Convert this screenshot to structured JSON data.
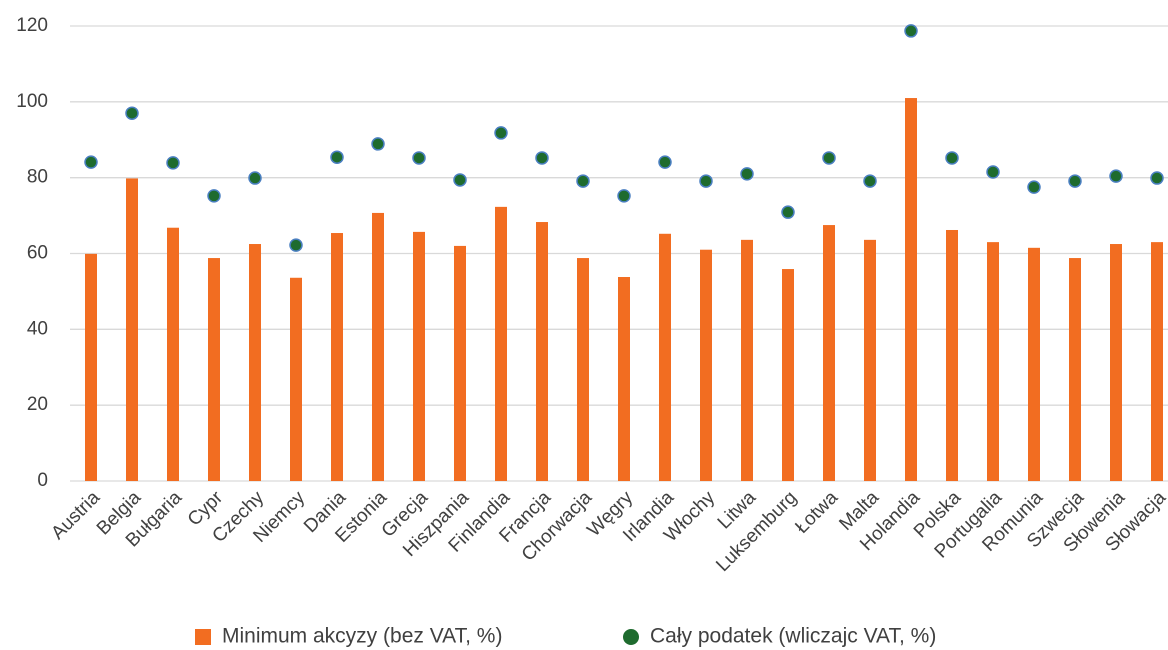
{
  "chart_data": {
    "type": "bar",
    "categories": [
      "Austria",
      "Belgia",
      "Bułgaria",
      "Cypr",
      "Czechy",
      "Niemcy",
      "Dania",
      "Estonia",
      "Grecja",
      "Hiszpania",
      "Finlandia",
      "Francja",
      "Chorwacja",
      "Węgry",
      "Irlandia",
      "Włochy",
      "Litwa",
      "Luksemburg",
      "Łotwa",
      "Malta",
      "Holandia",
      "Polska",
      "Portugalia",
      "Romunia",
      "Szwecja",
      "Słowenia",
      "Słowacja"
    ],
    "series": [
      {
        "name": "Minimum akcyzy (bez VAT, %)",
        "type": "bar",
        "color": "#f26d21",
        "values": [
          59.9,
          79.8,
          66.8,
          58.8,
          62.5,
          53.6,
          65.4,
          70.7,
          65.7,
          62,
          72.3,
          68.3,
          58.8,
          53.8,
          65.2,
          61,
          63.6,
          55.9,
          67.5,
          63.6,
          101,
          66.2,
          63,
          61.5,
          58.8,
          62.5,
          63
        ]
      },
      {
        "name": "Cały podatek (wliczajc VAT, %)",
        "type": "scatter",
        "color": "#1e6b2e",
        "values": [
          84.1,
          97,
          83.9,
          75.2,
          79.9,
          62.2,
          85.4,
          88.9,
          85.2,
          79.4,
          91.8,
          85.2,
          79.1,
          75.2,
          84.1,
          79.1,
          81,
          70.9,
          85.2,
          79.1,
          118.7,
          85.2,
          81.5,
          77.5,
          79.1,
          80.4,
          79.9
        ]
      }
    ],
    "ylim": [
      0,
      120
    ],
    "yticks": [
      0,
      20,
      40,
      60,
      80,
      100,
      120
    ],
    "grid": true,
    "legend": "bottom"
  }
}
